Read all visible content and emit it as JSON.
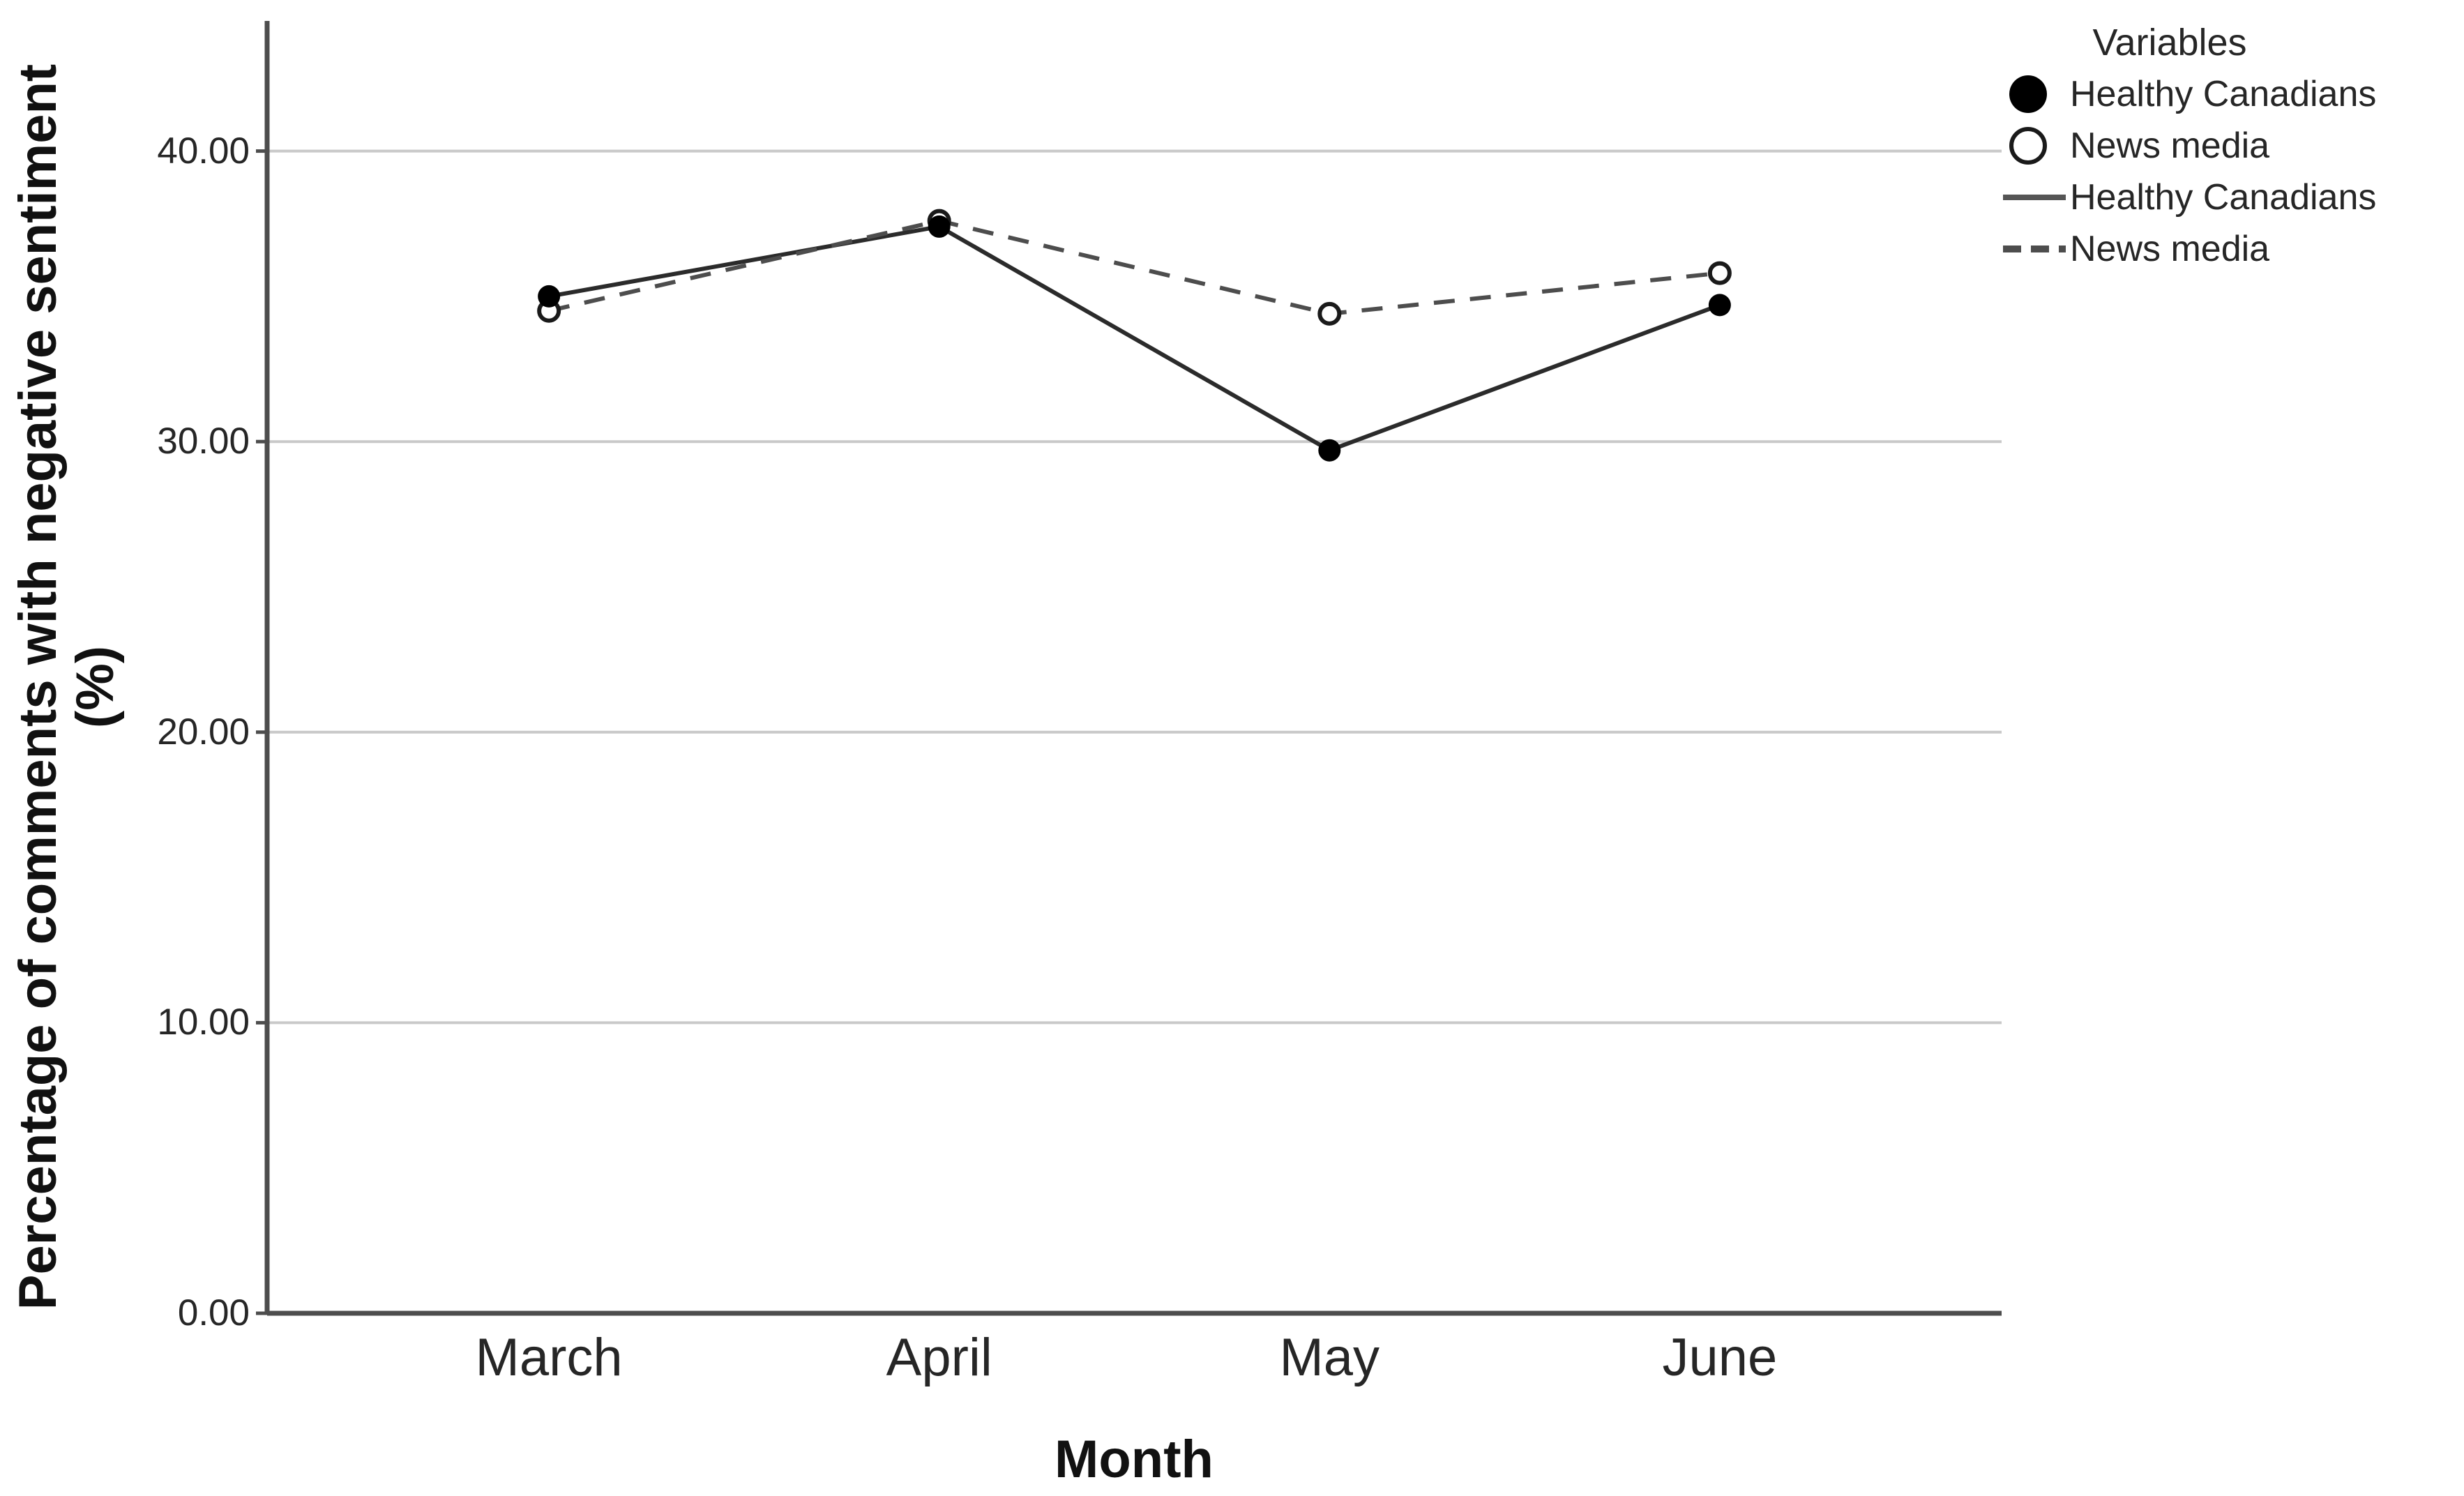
{
  "chart_data": {
    "type": "line",
    "categories": [
      "March",
      "April",
      "May",
      "June"
    ],
    "series": [
      {
        "name": "Healthy Canadians",
        "values": [
          35.0,
          37.4,
          29.7,
          34.7
        ],
        "line": "solid",
        "marker": "filled-circle",
        "color": "#2b2b2b"
      },
      {
        "name": "News media",
        "values": [
          34.5,
          37.6,
          34.4,
          35.8
        ],
        "line": "dashed",
        "marker": "open-circle",
        "color": "#4d4d4d"
      }
    ],
    "title": "",
    "xlabel": "Month",
    "ylabel": "Percentage of comments with negative sentiment",
    "ylabel_line2": "(%)",
    "yticks": [
      {
        "value": 40,
        "label": "40.00"
      },
      {
        "value": 30,
        "label": "30.00"
      },
      {
        "value": 20,
        "label": "20.00"
      },
      {
        "value": 10,
        "label": "10.00"
      },
      {
        "value": 0,
        "label": "0.00"
      }
    ],
    "ylim": [
      0,
      44.5
    ],
    "grid": "horizontal",
    "legend_position": "top-right",
    "colors": {
      "grid": "#c9c9c9",
      "axis": "#4d4d4d",
      "marker_fill": "#000000",
      "marker_open_fill": "#ffffff",
      "text": "#262626"
    }
  },
  "legend": {
    "title": "Variables",
    "items": [
      {
        "label": "Healthy Canadians",
        "marker": "filled-circle"
      },
      {
        "label": "News media",
        "marker": "open-circle"
      },
      {
        "label": "Healthy Canadians",
        "marker": "solid-line"
      },
      {
        "label": "News media",
        "marker": "dashed-line"
      }
    ]
  }
}
